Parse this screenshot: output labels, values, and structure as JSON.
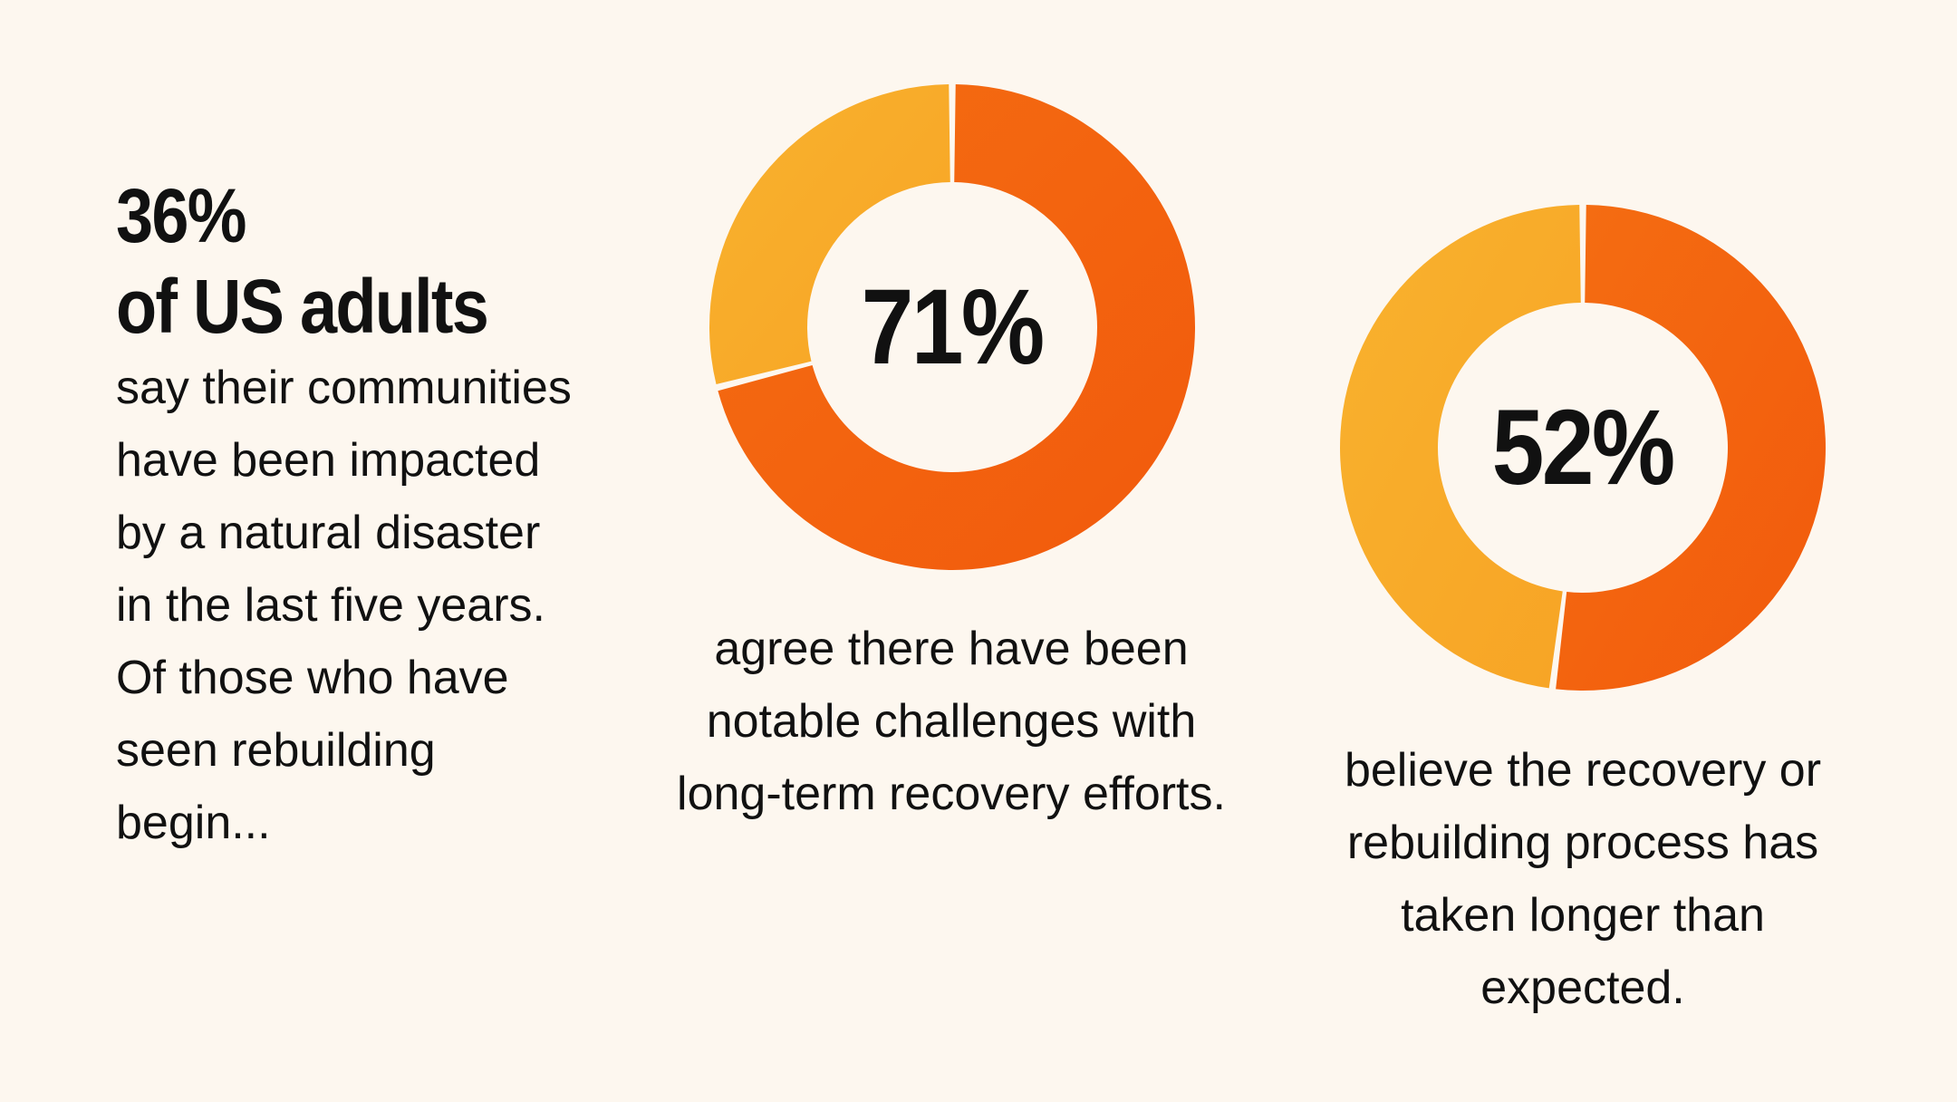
{
  "intro": {
    "stat": "36%",
    "subject": "of US adults",
    "body": "say their communities have been impacted by a natural disaster in the last five years. Of those who have seen rebuilding begin..."
  },
  "colors": {
    "background": "#fdf7ef",
    "major_segment": "#f25a0c",
    "minor_segment": "#f7a425"
  },
  "chart_data": [
    {
      "type": "pie",
      "style": "donut",
      "values": [
        71,
        29
      ],
      "center_label": "71%",
      "caption": "agree there have been notable challenges with long-term recovery efforts."
    },
    {
      "type": "pie",
      "style": "donut",
      "values": [
        52,
        48
      ],
      "center_label": "52%",
      "caption": "believe the recovery or rebuilding process has taken longer than expected."
    }
  ]
}
